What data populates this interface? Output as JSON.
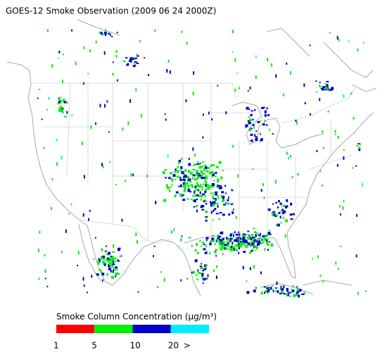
{
  "title": "GOES-12 Smoke Observation (2009 06 24  2000Z)",
  "colorbar": {
    "label": "Smoke Column Concentration (μg/m³)",
    "colors": [
      "#ff0000",
      "#00ee00",
      "#0000cc",
      "#00eeff"
    ],
    "ticks": [
      "1",
      "5",
      "10",
      "20",
      ">"
    ]
  }
}
